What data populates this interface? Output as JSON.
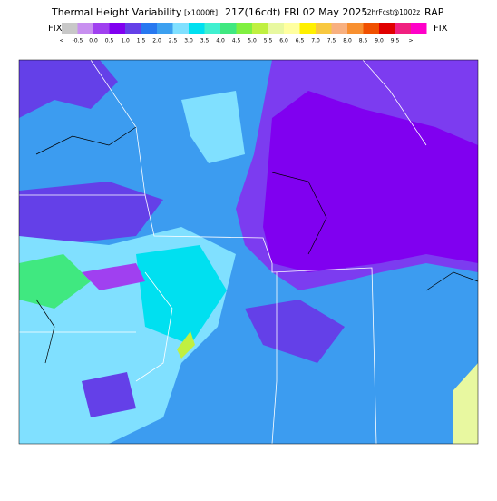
{
  "header": {
    "title": "Thermal Height Variability",
    "units": "[x1000ft]",
    "time": "21Z(16cdt) FRI 02 May 2025",
    "forecast": "12hrFcst@1002z",
    "model": "RAP"
  },
  "legend": {
    "left_label": "FIX",
    "right_label": "FIX",
    "labels": [
      "<",
      "-0.5",
      "0.0",
      "0.5",
      "1.0",
      "1.5",
      "2.0",
      "2.5",
      "3.0",
      "3.5",
      "4.0",
      "4.5",
      "5.0",
      "5.5",
      "6.0",
      "6.5",
      "7.0",
      "7.5",
      "8.0",
      "8.5",
      "9.0",
      "9.5",
      ">"
    ],
    "colors": [
      "#c8c8c8",
      "#c890f0",
      "#a040f0",
      "#8000f0",
      "#6440e8",
      "#2878f0",
      "#3ca0f0",
      "#80e0ff",
      "#00e0f0",
      "#40f0d0",
      "#40e880",
      "#80f040",
      "#c0f040",
      "#e8f8a0",
      "#ffffa0",
      "#fff000",
      "#f8c840",
      "#f8b080",
      "#f89030",
      "#f05000",
      "#e00000",
      "#f02080",
      "#ff00c8"
    ]
  }
}
